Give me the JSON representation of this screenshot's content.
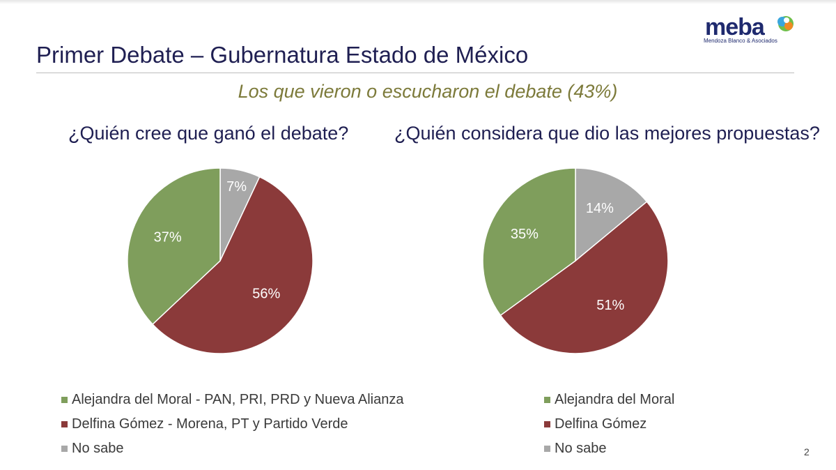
{
  "slide": {
    "title": "Primer Debate – Gubernatura Estado de México",
    "subtitle": "Los que vieron o escucharon el debate (43%)",
    "page_number": "2"
  },
  "logo": {
    "word": "meba",
    "tagline": "Mendoza Blanco & Asociados"
  },
  "colors": {
    "green": "#7f9e5c",
    "red": "#8b3a3a",
    "gray": "#a8a8a8",
    "title": "#1f1f52",
    "subtitle": "#7c7a3a"
  },
  "chart_data": [
    {
      "type": "pie",
      "title": "¿Quién cree que ganó el debate?",
      "slices": [
        {
          "name": "Alejandra del Moral - PAN, PRI, PRD y Nueva Alianza",
          "value": 37,
          "label": "37%",
          "color": "#7f9e5c"
        },
        {
          "name": "Delfina Gómez - Morena, PT y Partido Verde",
          "value": 56,
          "label": "56%",
          "color": "#8b3a3a"
        },
        {
          "name": "No sabe",
          "value": 7,
          "label": "7%",
          "color": "#a8a8a8"
        }
      ],
      "legend": "bottom"
    },
    {
      "type": "pie",
      "title": "¿Quién considera que dio las mejores propuestas?",
      "slices": [
        {
          "name": "Alejandra del Moral",
          "value": 35,
          "label": "35%",
          "color": "#7f9e5c"
        },
        {
          "name": "Delfina Gómez",
          "value": 51,
          "label": "51%",
          "color": "#8b3a3a"
        },
        {
          "name": "No sabe",
          "value": 14,
          "label": "14%",
          "color": "#a8a8a8"
        }
      ],
      "legend": "bottom"
    }
  ]
}
